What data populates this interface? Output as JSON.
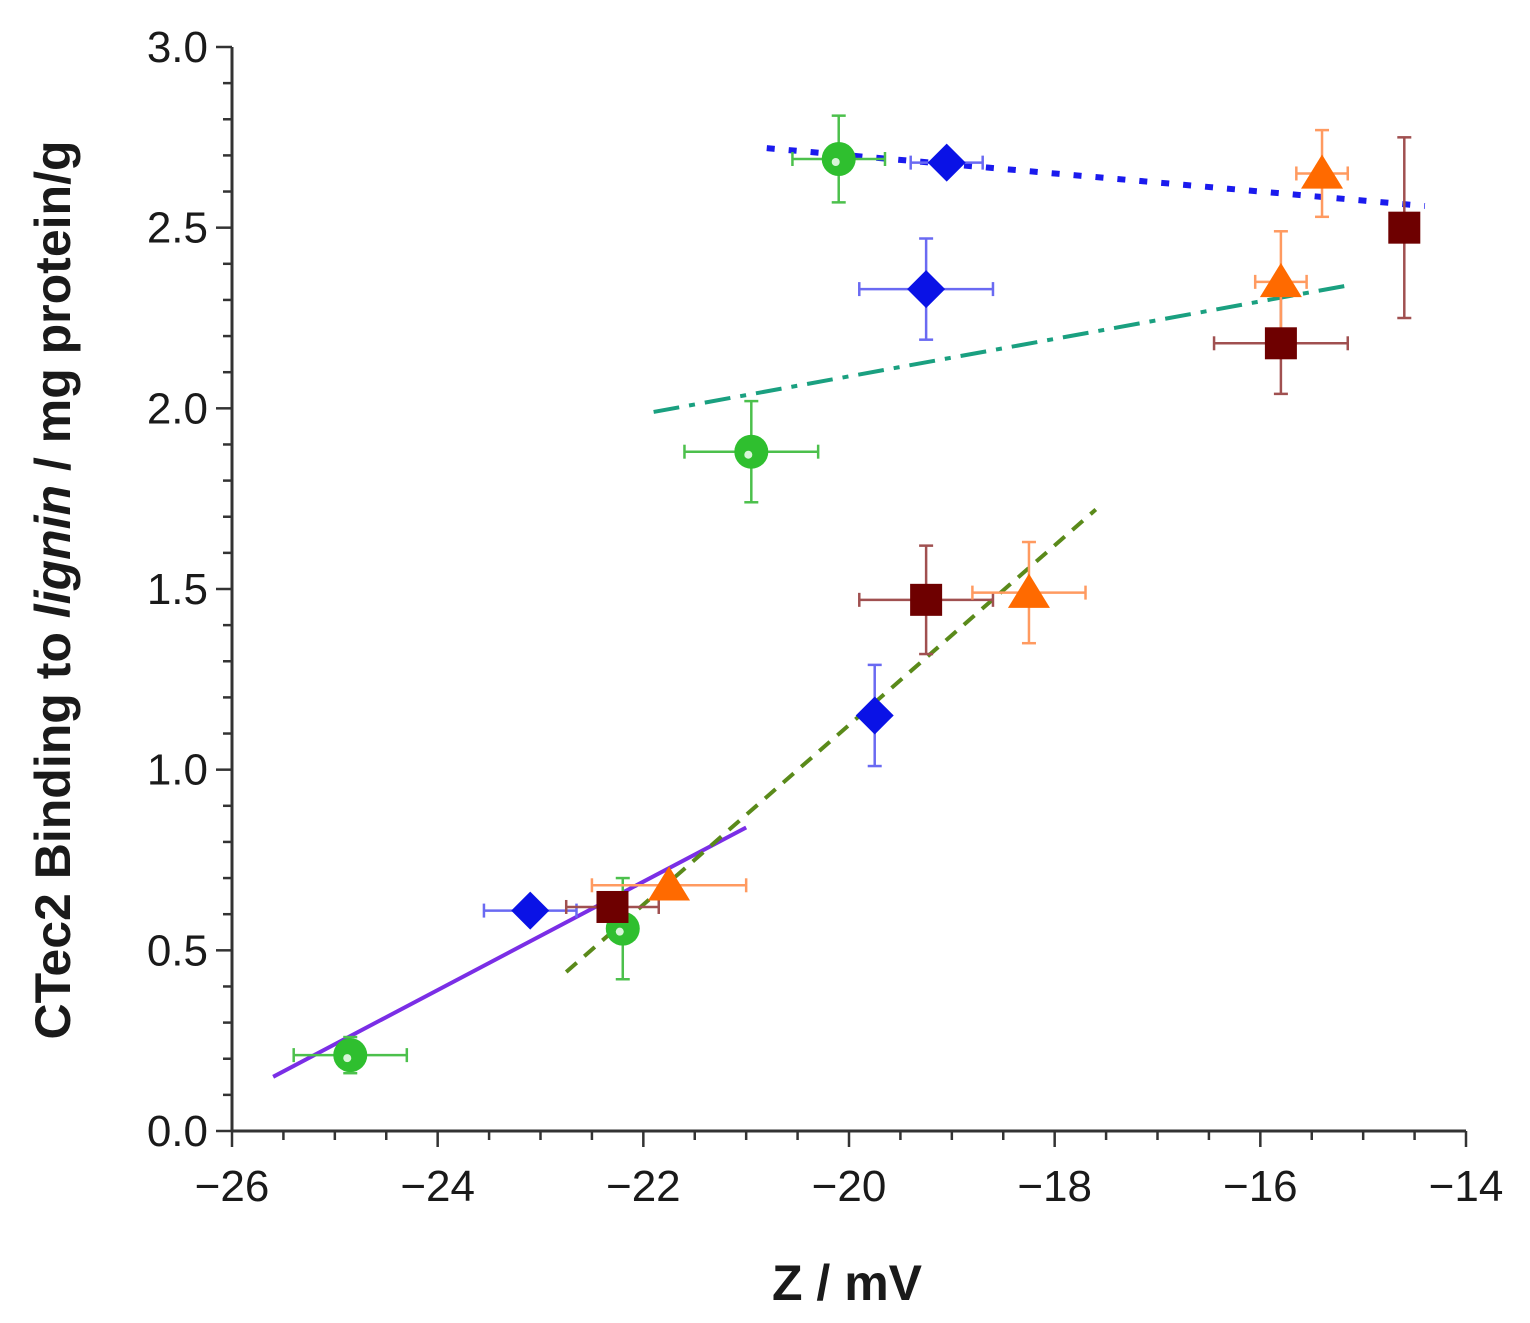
{
  "chart_data": {
    "type": "scatter",
    "title": "",
    "xlabel": "Z / mV",
    "ylabel": {
      "prefix": "CTec2 Binding to ",
      "italic": "lignin",
      "suffix": " / mg protein/g"
    },
    "xlim": [
      -26,
      -14
    ],
    "ylim": [
      0.0,
      3.0
    ],
    "x_ticks": [
      -26,
      -24,
      -22,
      -20,
      -18,
      -16,
      -14
    ],
    "x_tick_labels": [
      "−26",
      "−24",
      "−22",
      "−20",
      "−18",
      "−16",
      "−14"
    ],
    "y_ticks": [
      0.0,
      0.5,
      1.0,
      1.5,
      2.0,
      2.5,
      3.0
    ],
    "y_tick_labels": [
      "0.0",
      "0.5",
      "1.0",
      "1.5",
      "2.0",
      "2.5",
      "3.0"
    ],
    "grid": false,
    "series": [
      {
        "name": "green circles",
        "marker": "circle",
        "color": "#2fbf2f",
        "errcolor": "#4cc04c",
        "points": [
          {
            "x": -24.85,
            "y": 0.21,
            "xerr": 0.55,
            "yerr": 0.05
          },
          {
            "x": -22.2,
            "y": 0.56,
            "xerr": 0.0,
            "yerr": 0.14
          },
          {
            "x": -20.95,
            "y": 1.88,
            "xerr": 0.65,
            "yerr": 0.14
          },
          {
            "x": -20.1,
            "y": 2.69,
            "xerr": 0.45,
            "yerr": 0.12
          }
        ]
      },
      {
        "name": "blue diamonds",
        "marker": "diamond",
        "color": "#0a12e6",
        "errcolor": "#6a6af2",
        "points": [
          {
            "x": -23.1,
            "y": 0.61,
            "xerr": 0.45,
            "yerr": 0.0
          },
          {
            "x": -19.75,
            "y": 1.15,
            "xerr": 0.0,
            "yerr": 0.14
          },
          {
            "x": -19.25,
            "y": 2.33,
            "xerr": 0.65,
            "yerr": 0.14
          },
          {
            "x": -19.05,
            "y": 2.68,
            "xerr": 0.35,
            "yerr": 0.0
          }
        ]
      },
      {
        "name": "dark red squares",
        "marker": "square",
        "color": "#6e0000",
        "errcolor": "#a05050",
        "points": [
          {
            "x": -22.3,
            "y": 0.62,
            "xerr": 0.45,
            "yerr": 0.0
          },
          {
            "x": -19.25,
            "y": 1.47,
            "xerr": 0.65,
            "yerr": 0.15
          },
          {
            "x": -15.8,
            "y": 2.18,
            "xerr": 0.65,
            "yerr": 0.14
          },
          {
            "x": -14.6,
            "y": 2.5,
            "xerr": 0.0,
            "yerr": 0.25
          }
        ]
      },
      {
        "name": "orange triangles",
        "marker": "triangle",
        "color": "#ff6a00",
        "errcolor": "#ff9a60",
        "points": [
          {
            "x": -21.75,
            "y": 0.68,
            "xerr": 0.75,
            "yerr": 0.0
          },
          {
            "x": -18.25,
            "y": 1.49,
            "xerr": 0.55,
            "yerr": 0.14
          },
          {
            "x": -15.8,
            "y": 2.35,
            "xerr": 0.25,
            "yerr": 0.14
          },
          {
            "x": -15.4,
            "y": 2.65,
            "xerr": 0.25,
            "yerr": 0.12
          }
        ]
      }
    ],
    "fit_lines": [
      {
        "name": "solid fit",
        "style": "solid",
        "color": "#7a2ee6",
        "x": [
          -25.6,
          -21.0
        ],
        "y": [
          0.15,
          0.84
        ]
      },
      {
        "name": "dashed fit",
        "style": "dashed",
        "color": "#5a8a1a",
        "x": [
          -22.75,
          -17.6
        ],
        "y": [
          0.44,
          1.72
        ]
      },
      {
        "name": "dash-dot fit",
        "style": "dashdot",
        "color": "#1aa080",
        "x": [
          -21.9,
          -15.15
        ],
        "y": [
          1.99,
          2.34
        ]
      },
      {
        "name": "dotted fit",
        "style": "dotted",
        "color": "#1a1aee",
        "x": [
          -20.8,
          -14.4
        ],
        "y": [
          2.72,
          2.56
        ]
      }
    ]
  }
}
